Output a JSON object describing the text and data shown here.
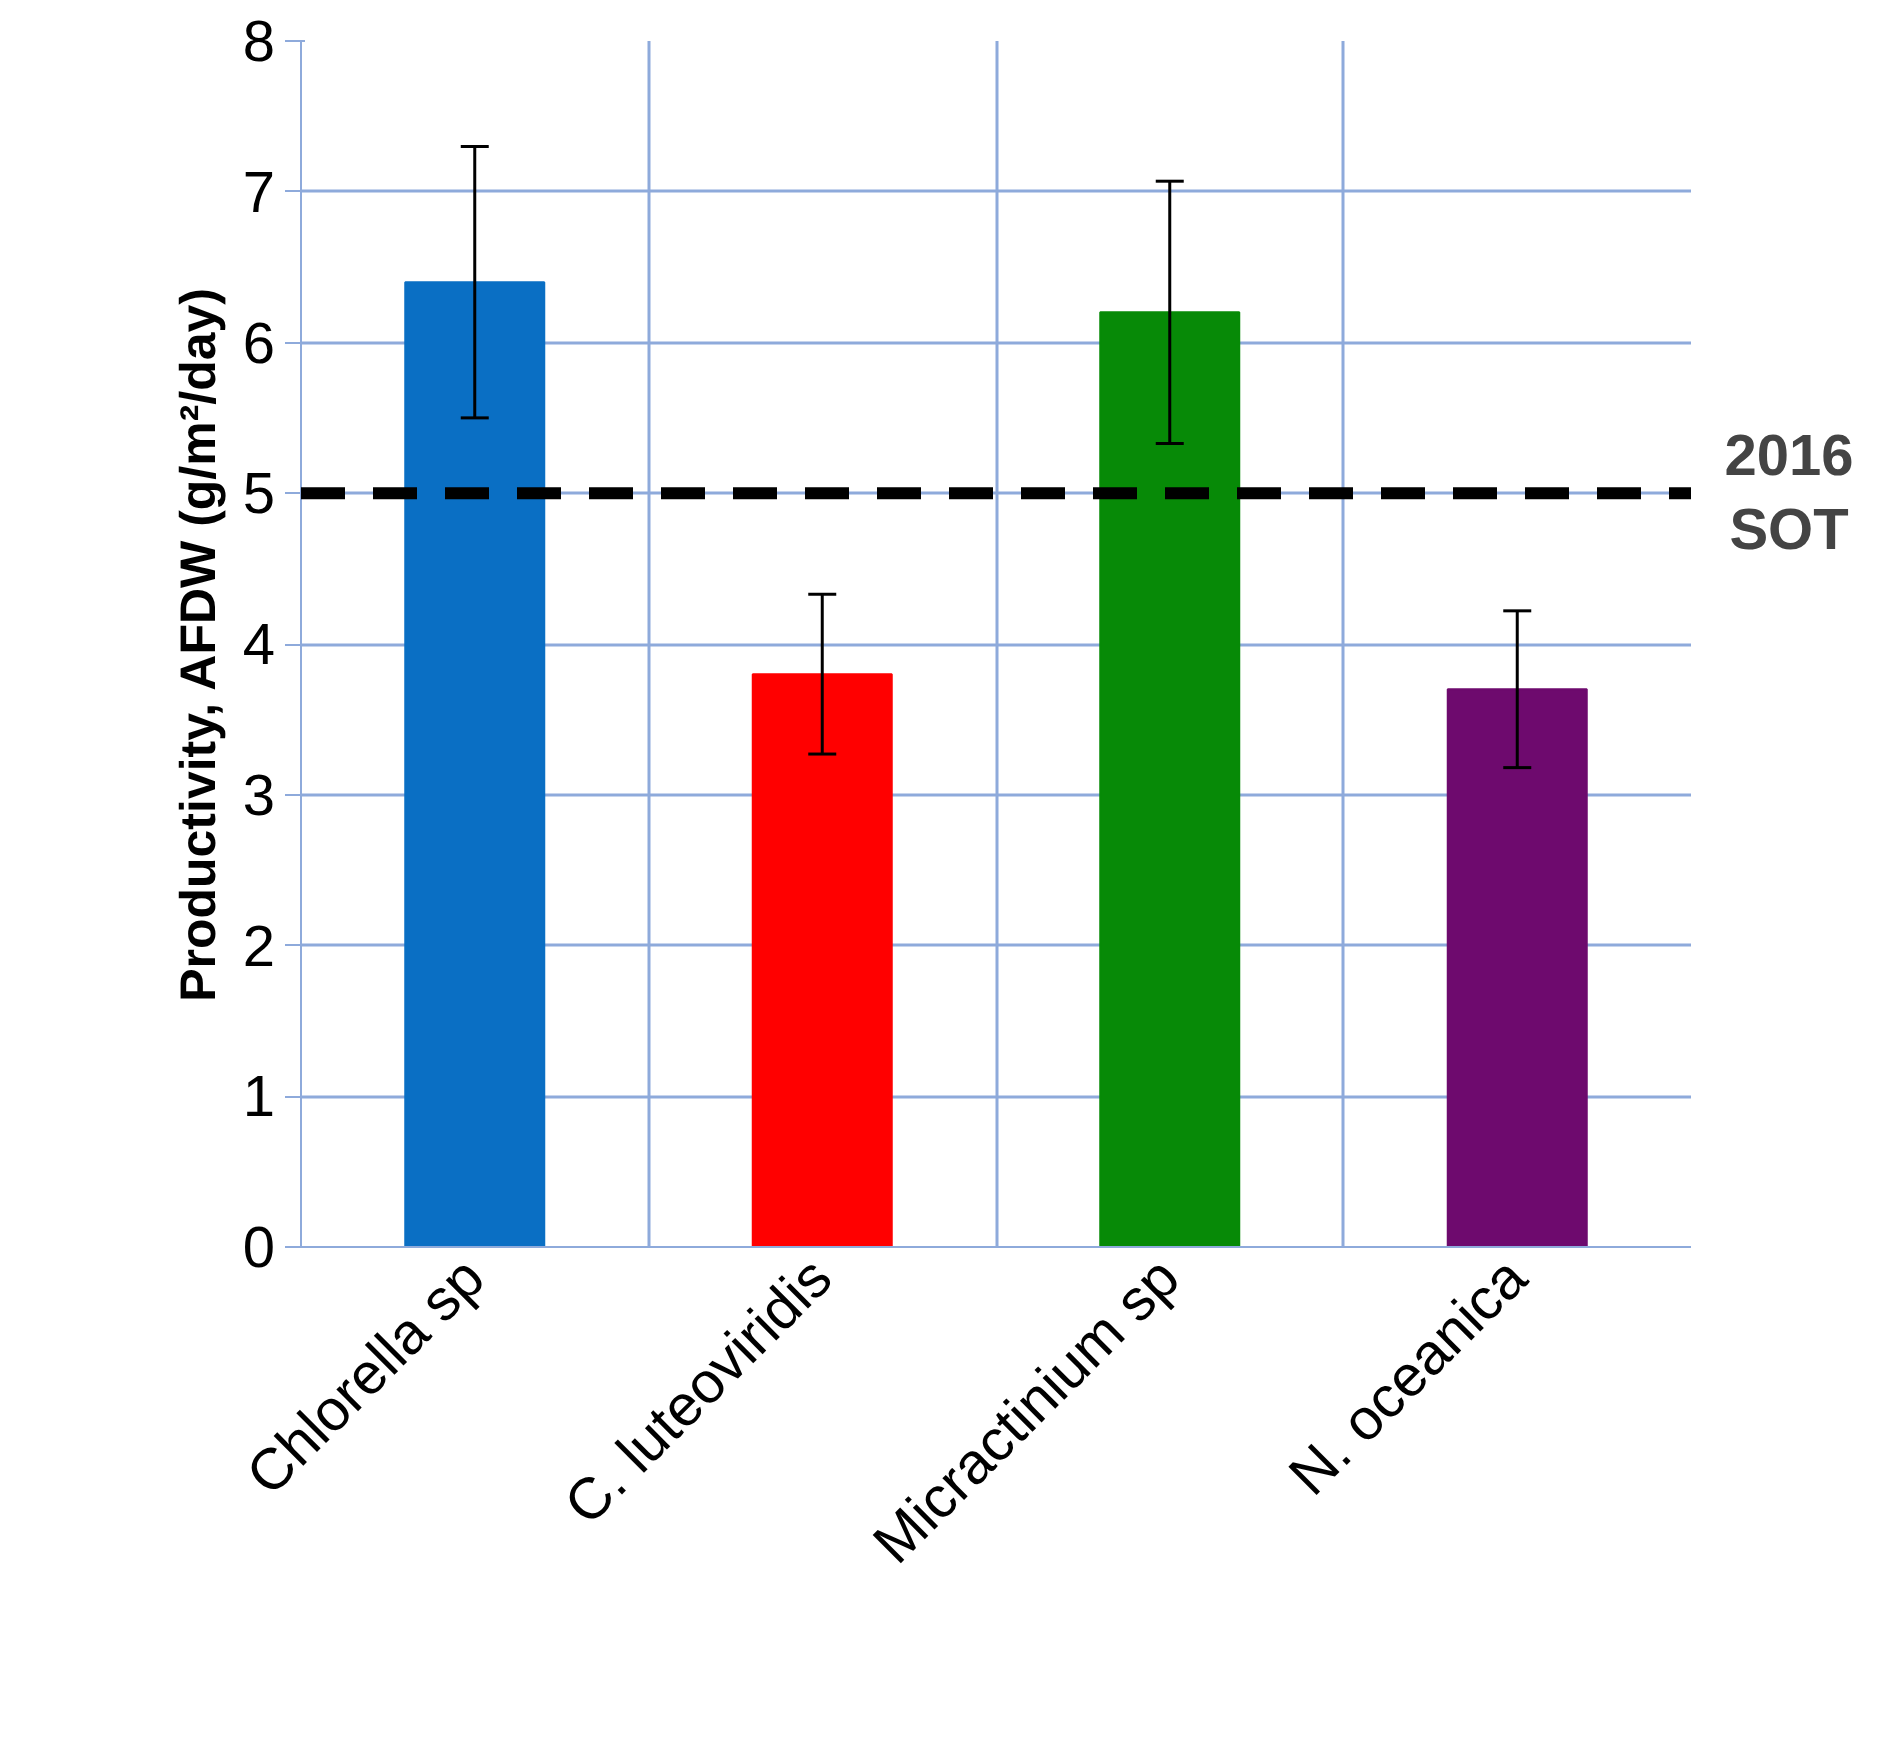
{
  "chart_data": {
    "type": "bar",
    "ylabel": "Productivity, AFDW (g/m²/day)",
    "categories": [
      "Chlorella sp",
      "C. luteoviridis",
      "Micractinium sp",
      "N. oceanica"
    ],
    "values": [
      6.4,
      3.8,
      6.2,
      3.7
    ],
    "colors": [
      "#0a6fc4",
      "#ff0000",
      "#078a07",
      "#6e0a6e"
    ],
    "errors": [
      0.9,
      0.53,
      0.87,
      0.52
    ],
    "ylim": [
      0,
      8
    ],
    "yticks": [
      0,
      1,
      2,
      3,
      4,
      5,
      6,
      7,
      8
    ],
    "grid": true,
    "ref_lines": [
      {
        "axis": "y",
        "value": 5,
        "label": "2016 SOT",
        "color": "#000000",
        "line_style": "dashed"
      }
    ]
  }
}
